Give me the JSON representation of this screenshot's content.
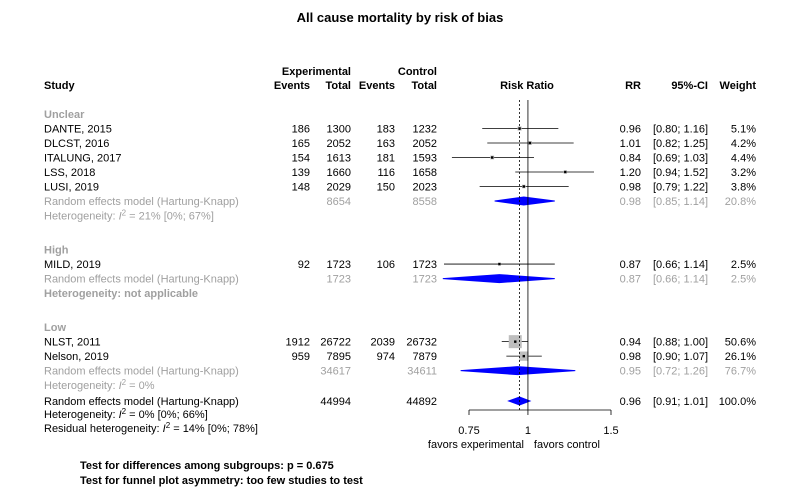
{
  "chart_data": {
    "type": "forest",
    "title": "All cause mortality by risk of bias",
    "columns": {
      "study": "Study",
      "experimental": "Experimental",
      "control": "Control",
      "events": "Events",
      "total": "Total",
      "effect": "Risk Ratio",
      "rr": "RR",
      "ci": "95%-CI",
      "weight": "Weight"
    },
    "x_axis": {
      "scale": "log",
      "ticks": [
        {
          "value": 0.75,
          "label": "0.75"
        },
        {
          "value": 1,
          "label": "1"
        },
        {
          "value": 1.5,
          "label": "1.5"
        }
      ],
      "xlim": [
        0.6,
        1.6
      ],
      "null_value": 1,
      "label_left": "favors experimental",
      "label_right": "favors control"
    },
    "subgroups": [
      {
        "name": "Unclear",
        "studies": [
          {
            "study": "DANTE, 2015",
            "exp_events": "186",
            "exp_total": "1300",
            "ctl_events": "183",
            "ctl_total": "1232",
            "rr": 0.96,
            "lower": 0.8,
            "upper": 1.16,
            "rr_text": "0.96",
            "ci_text": "[0.80; 1.16]",
            "weight": "5.1%",
            "weight_value": 5.1
          },
          {
            "study": "DLCST, 2016",
            "exp_events": "165",
            "exp_total": "2052",
            "ctl_events": "163",
            "ctl_total": "2052",
            "rr": 1.01,
            "lower": 0.82,
            "upper": 1.25,
            "rr_text": "1.01",
            "ci_text": "[0.82; 1.25]",
            "weight": "4.2%",
            "weight_value": 4.2
          },
          {
            "study": "ITALUNG, 2017",
            "exp_events": "154",
            "exp_total": "1613",
            "ctl_events": "181",
            "ctl_total": "1593",
            "rr": 0.84,
            "lower": 0.69,
            "upper": 1.03,
            "rr_text": "0.84",
            "ci_text": "[0.69; 1.03]",
            "weight": "4.4%",
            "weight_value": 4.4
          },
          {
            "study": "LSS, 2018",
            "exp_events": "139",
            "exp_total": "1660",
            "ctl_events": "116",
            "ctl_total": "1658",
            "rr": 1.2,
            "lower": 0.94,
            "upper": 1.52,
            "rr_text": "1.20",
            "ci_text": "[0.94; 1.52]",
            "weight": "3.2%",
            "weight_value": 3.2
          },
          {
            "study": "LUSI, 2019",
            "exp_events": "148",
            "exp_total": "2029",
            "ctl_events": "150",
            "ctl_total": "2023",
            "rr": 0.98,
            "lower": 0.79,
            "upper": 1.22,
            "rr_text": "0.98",
            "ci_text": "[0.79; 1.22]",
            "weight": "3.8%",
            "weight_value": 3.8
          }
        ],
        "summary": {
          "label": "Random effects model  (Hartung-Knapp)",
          "exp_total": "8654",
          "ctl_total": "8558",
          "rr": 0.98,
          "lower": 0.85,
          "upper": 1.14,
          "rr_text": "0.98",
          "ci_text": "[0.85; 1.14]",
          "weight": "20.8%"
        },
        "heterogeneity": {
          "prefix": "Heterogeneity: ",
          "i2": "I",
          "sup": "2",
          "rest": " = 21% [0%; 67%]"
        }
      },
      {
        "name": "High",
        "studies": [
          {
            "study": "MILD, 2019",
            "exp_events": "92",
            "exp_total": "1723",
            "ctl_events": "106",
            "ctl_total": "1723",
            "rr": 0.87,
            "lower": 0.66,
            "upper": 1.14,
            "rr_text": "0.87",
            "ci_text": "[0.66; 1.14]",
            "weight": "2.5%",
            "weight_value": 2.5
          }
        ],
        "summary": {
          "label": "Random effects model  (Hartung-Knapp)",
          "exp_total": "1723",
          "ctl_total": "1723",
          "rr": 0.87,
          "lower": 0.66,
          "upper": 1.14,
          "rr_text": "0.87",
          "ci_text": "[0.66; 1.14]",
          "weight": "2.5%"
        },
        "heterogeneity": {
          "text": "Heterogeneity: not applicable",
          "bold": true
        }
      },
      {
        "name": "Low",
        "studies": [
          {
            "study": "NLST, 2011",
            "exp_events": "1912",
            "exp_total": "26722",
            "ctl_events": "2039",
            "ctl_total": "26732",
            "rr": 0.94,
            "lower": 0.88,
            "upper": 1.0,
            "rr_text": "0.94",
            "ci_text": "[0.88; 1.00]",
            "weight": "50.6%",
            "weight_value": 50.6
          },
          {
            "study": "Nelson, 2019",
            "exp_events": "959",
            "exp_total": "7895",
            "ctl_events": "974",
            "ctl_total": "7879",
            "rr": 0.98,
            "lower": 0.9,
            "upper": 1.07,
            "rr_text": "0.98",
            "ci_text": "[0.90; 1.07]",
            "weight": "26.1%",
            "weight_value": 26.1
          }
        ],
        "summary": {
          "label": "Random effects model  (Hartung-Knapp)",
          "exp_total": "34617",
          "ctl_total": "34611",
          "rr": 0.95,
          "lower": 0.72,
          "upper": 1.26,
          "rr_text": "0.95",
          "ci_text": "[0.72; 1.26]",
          "weight": "76.7%"
        },
        "heterogeneity": {
          "prefix": "Heterogeneity: ",
          "i2": "I",
          "sup": "2",
          "rest": " = 0%"
        }
      }
    ],
    "overall": {
      "label": "Random effects model  (Hartung-Knapp)",
      "exp_total": "44994",
      "ctl_total": "44892",
      "rr": 0.96,
      "lower": 0.91,
      "upper": 1.01,
      "rr_text": "0.96",
      "ci_text": "[0.91; 1.01]",
      "weight": "100.0%",
      "heterogeneity": {
        "prefix": "Heterogeneity: ",
        "i2": "I",
        "sup": "2",
        "rest": " = 0% [0%; 66%]"
      },
      "residual": {
        "prefix": "Residual heterogeneity: ",
        "i2": "I",
        "sup": "2",
        "rest": " = 14% [0%; 78%]"
      }
    },
    "footnotes": [
      "Test for differences among subgroups: p = 0.675",
      "Test for funnel plot asymmetry: too few studies to test"
    ],
    "colors": {
      "diamond": "#0000ff",
      "square": "#bebebe",
      "muted": "#a0a0a0",
      "text": "#000000"
    }
  }
}
